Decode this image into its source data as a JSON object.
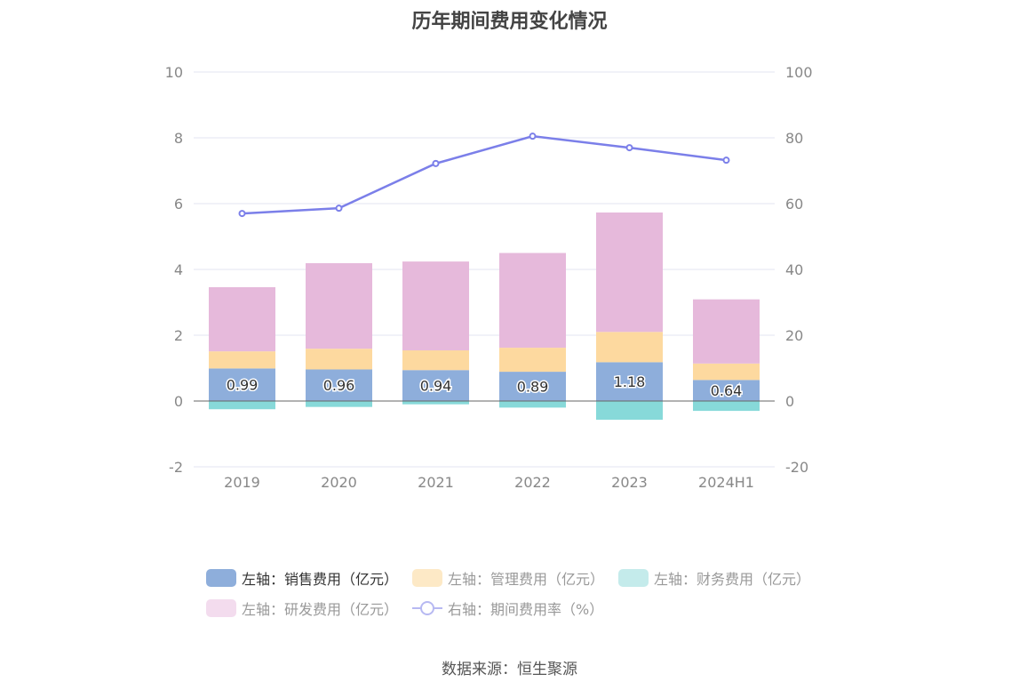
{
  "title": "历年期间费用变化情况",
  "source": "数据来源：恒生聚源",
  "chart_data": {
    "type": "bar",
    "stacked": true,
    "categories": [
      "2019",
      "2020",
      "2021",
      "2022",
      "2023",
      "2024H1"
    ],
    "left_axis": {
      "ylim": [
        -2,
        10
      ],
      "ticks": [
        "-2",
        "0",
        "2",
        "4",
        "6",
        "8",
        "10"
      ]
    },
    "right_axis": {
      "ylim": [
        -20,
        100
      ],
      "ticks": [
        "-20",
        "0",
        "20",
        "40",
        "60",
        "80",
        "100"
      ]
    },
    "series": [
      {
        "name": "左轴：销售费用（亿元）",
        "type": "bar",
        "axis": "left",
        "color": "#8eaedb",
        "values": [
          0.99,
          0.96,
          0.94,
          0.89,
          1.18,
          0.64
        ],
        "labels": [
          "0.99",
          "0.96",
          "0.94",
          "0.89",
          "1.18",
          "0.64"
        ]
      },
      {
        "name": "左轴：管理费用（亿元）",
        "type": "bar",
        "axis": "left",
        "color": "#fdd99f",
        "values": [
          0.52,
          0.63,
          0.6,
          0.73,
          0.92,
          0.5
        ]
      },
      {
        "name": "左轴：财务费用（亿元）",
        "type": "bar",
        "axis": "left",
        "color": "#87d9d9",
        "values": [
          -0.25,
          -0.18,
          -0.1,
          -0.2,
          -0.57,
          -0.3
        ]
      },
      {
        "name": "左轴：研发费用（亿元）",
        "type": "bar",
        "axis": "left",
        "color": "#e6b9db",
        "values": [
          1.95,
          2.6,
          2.7,
          2.88,
          3.63,
          1.95
        ]
      },
      {
        "name": "右轴：期间费用率（%）",
        "type": "line",
        "axis": "right",
        "color": "#7b7fe9",
        "values": [
          57.0,
          58.6,
          72.2,
          80.5,
          77.0,
          73.2
        ]
      }
    ],
    "legend_position": "bottom",
    "grid": true
  },
  "legend": [
    {
      "label": "左轴：销售费用（亿元）",
      "color": "#8eaedb",
      "active": true
    },
    {
      "label": "左轴：管理费用（亿元）",
      "color": "#fde9c6",
      "active": false
    },
    {
      "label": "左轴：财务费用（亿元）",
      "color": "#c4ebeb",
      "active": false
    },
    {
      "label": "左轴：研发费用（亿元）",
      "color": "#f3dcee",
      "active": false
    },
    {
      "label": "右轴：期间费用率（%）",
      "color": "#b7b9f2",
      "active": false
    }
  ]
}
